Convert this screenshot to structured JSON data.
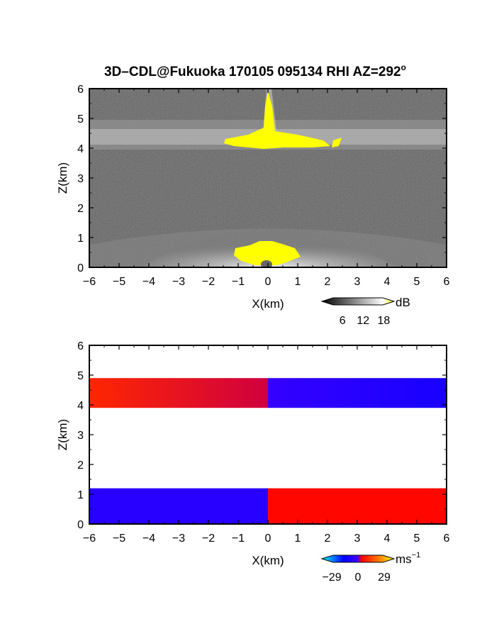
{
  "figure": {
    "title": "3D–CDL@Fukuoka 170105 095134 RHI AZ=292",
    "title_suffix": "o"
  },
  "chart_data": [
    {
      "type": "heatmap",
      "name": "reflectivity-panel",
      "xlabel": "X(km)",
      "ylabel": "Z(km)",
      "xlim": [
        -6,
        6
      ],
      "ylim": [
        0,
        6
      ],
      "xticks": [
        "−6",
        "−5",
        "−4",
        "−3",
        "−2",
        "−1",
        "0",
        "1",
        "2",
        "3",
        "4",
        "5",
        "6"
      ],
      "yticks": [
        "0",
        "1",
        "2",
        "3",
        "4",
        "5",
        "6"
      ],
      "colorbar": {
        "unit": "dB",
        "ticks": [
          "6",
          "12",
          "18"
        ],
        "tick_values": [
          6,
          12,
          18
        ],
        "range": [
          0,
          21
        ],
        "colors": [
          "#000000",
          "#ffffff",
          "#ffff00"
        ]
      },
      "layers": [
        {
          "label": "upper echo layer",
          "z_range": [
            4.0,
            4.9
          ]
        },
        {
          "label": "lower echo layer",
          "z_range": [
            0.0,
            1.2
          ]
        },
        {
          "label": "strong echo near radar",
          "x_range": [
            -1.0,
            1.2
          ],
          "z_range": [
            0.0,
            0.8
          ]
        },
        {
          "label": "strong echo upper plume",
          "x_range": [
            -0.1,
            0.3
          ],
          "z_range": [
            4.0,
            6.0
          ]
        }
      ]
    },
    {
      "type": "heatmap",
      "name": "doppler-velocity-panel",
      "xlabel": "X(km)",
      "ylabel": "Z(km)",
      "xlim": [
        -6,
        6
      ],
      "ylim": [
        0,
        6
      ],
      "xticks": [
        "−6",
        "−5",
        "−4",
        "−3",
        "−2",
        "−1",
        "0",
        "1",
        "2",
        "3",
        "4",
        "5",
        "6"
      ],
      "yticks": [
        "0",
        "1",
        "2",
        "3",
        "4",
        "5",
        "6"
      ],
      "colorbar": {
        "unit": "ms",
        "unit_exp": "−1",
        "ticks": [
          "−29",
          "0",
          "29"
        ],
        "tick_values": [
          -29,
          0,
          29
        ],
        "range": [
          -40,
          40
        ],
        "colors": [
          "#00ffff",
          "#0000ff",
          "#ff0000",
          "#ffff00"
        ]
      },
      "regions": [
        {
          "label": "upper layer receding",
          "x_range": [
            -6,
            0
          ],
          "z_range": [
            3.9,
            4.9
          ],
          "velocity": [
            10,
            3
          ]
        },
        {
          "label": "upper layer approaching",
          "x_range": [
            0,
            6
          ],
          "z_range": [
            3.9,
            4.9
          ],
          "velocity": [
            -3,
            -10
          ]
        },
        {
          "label": "lower layer approaching",
          "x_range": [
            -6,
            0
          ],
          "z_range": [
            0.0,
            1.2
          ],
          "velocity": -6
        },
        {
          "label": "lower layer receding",
          "x_range": [
            0,
            6
          ],
          "z_range": [
            0.0,
            1.2
          ],
          "velocity": 5
        }
      ]
    }
  ]
}
